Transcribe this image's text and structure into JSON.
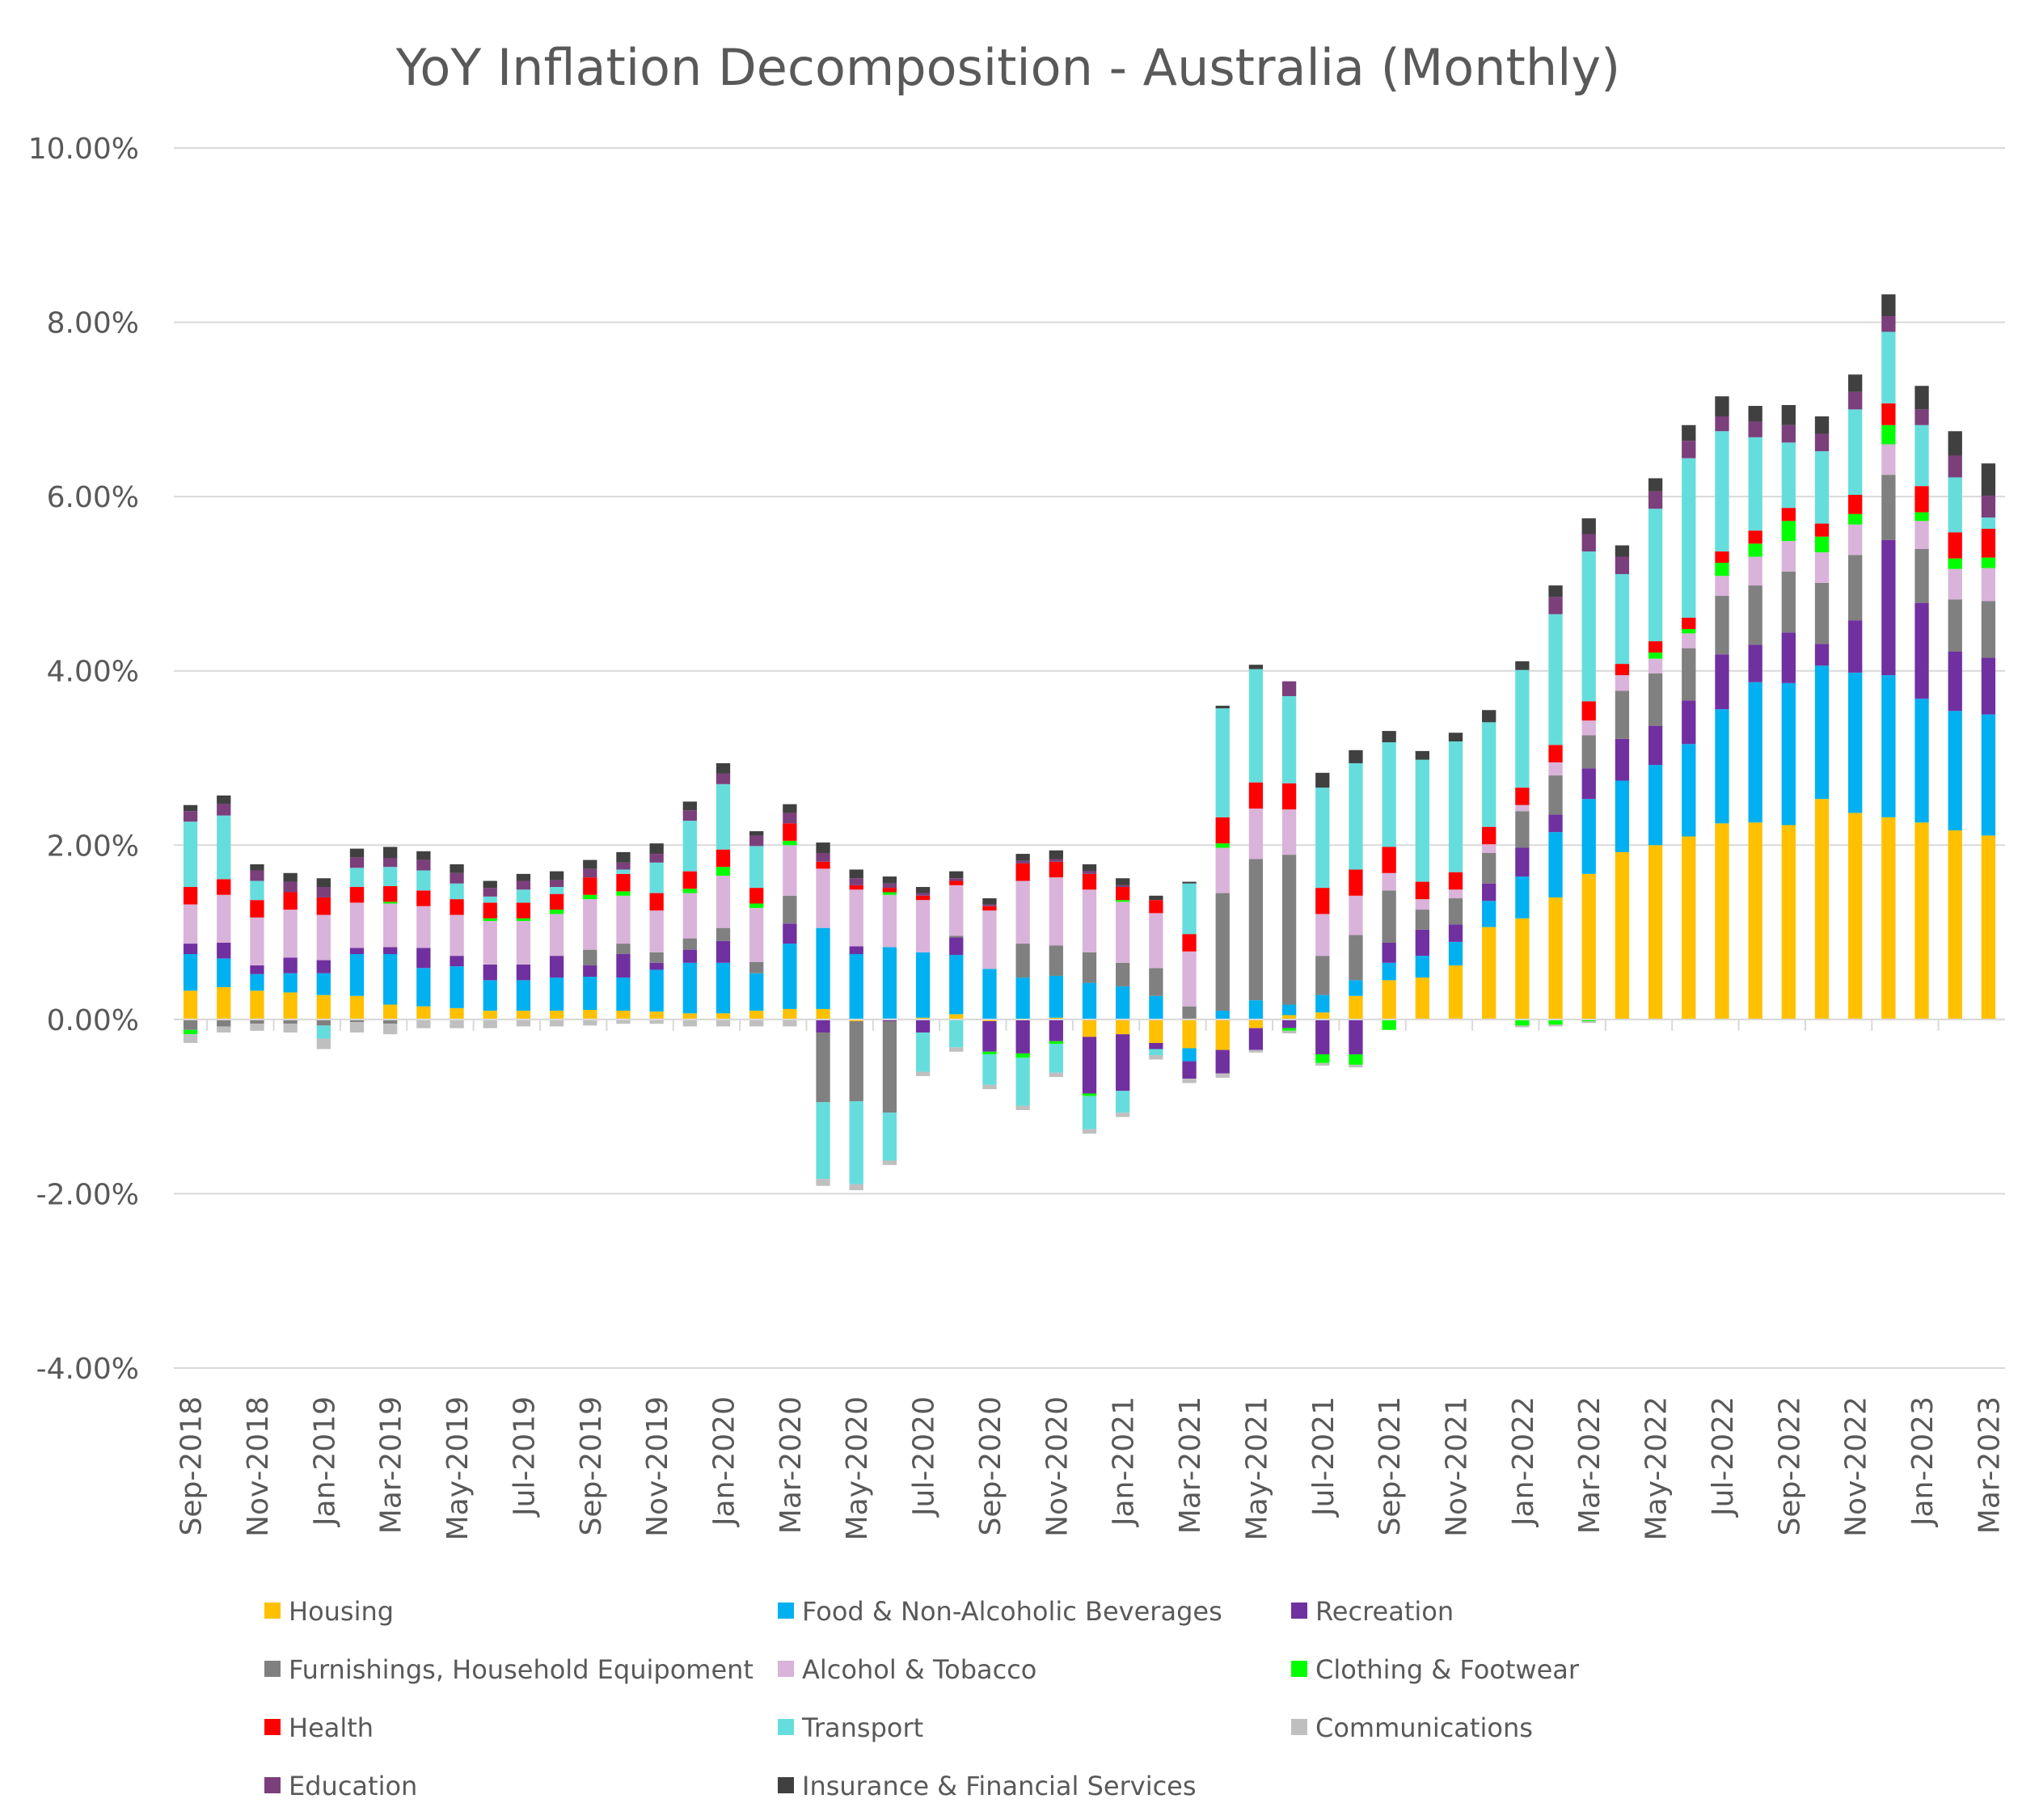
{
  "chart_data": {
    "type": "bar",
    "stacked": true,
    "title": "YoY Inflation Decomposition - Australia (Monthly)",
    "xlabel": "",
    "ylabel": "",
    "ylim": [
      -4,
      10
    ],
    "y_ticks": [
      -4,
      -2,
      0,
      2,
      4,
      6,
      8,
      10
    ],
    "y_tick_labels": [
      "-4.00%",
      "-2.00%",
      "0.00%",
      "2.00%",
      "4.00%",
      "6.00%",
      "8.00%",
      "10.00%"
    ],
    "grid": true,
    "legend_position": "bottom",
    "categories": [
      "Sep-2018",
      "Oct-2018",
      "Nov-2018",
      "Dec-2018",
      "Jan-2019",
      "Feb-2019",
      "Mar-2019",
      "Apr-2019",
      "May-2019",
      "Jun-2019",
      "Jul-2019",
      "Aug-2019",
      "Sep-2019",
      "Oct-2019",
      "Nov-2019",
      "Dec-2019",
      "Jan-2020",
      "Feb-2020",
      "Mar-2020",
      "Apr-2020",
      "May-2020",
      "Jun-2020",
      "Jul-2020",
      "Aug-2020",
      "Sep-2020",
      "Oct-2020",
      "Nov-2020",
      "Dec-2020",
      "Jan-2021",
      "Feb-2021",
      "Mar-2021",
      "Apr-2021",
      "May-2021",
      "Jun-2021",
      "Jul-2021",
      "Aug-2021",
      "Sep-2021",
      "Oct-2021",
      "Nov-2021",
      "Dec-2021",
      "Jan-2022",
      "Feb-2022",
      "Mar-2022",
      "Apr-2022",
      "May-2022",
      "Jun-2022",
      "Jul-2022",
      "Aug-2022",
      "Sep-2022",
      "Oct-2022",
      "Nov-2022",
      "Dec-2022",
      "Jan-2023",
      "Feb-2023",
      "Mar-2023"
    ],
    "x_tick_labels": [
      "Sep-2018",
      "",
      "Nov-2018",
      "",
      "Jan-2019",
      "",
      "Mar-2019",
      "",
      "May-2019",
      "",
      "Jul-2019",
      "",
      "Sep-2019",
      "",
      "Nov-2019",
      "",
      "Jan-2020",
      "",
      "Mar-2020",
      "",
      "May-2020",
      "",
      "Jul-2020",
      "",
      "Sep-2020",
      "",
      "Nov-2020",
      "",
      "Jan-2021",
      "",
      "Mar-2021",
      "",
      "May-2021",
      "",
      "Jul-2021",
      "",
      "Sep-2021",
      "",
      "Nov-2021",
      "",
      "Jan-2022",
      "",
      "Mar-2022",
      "",
      "May-2022",
      "",
      "Jul-2022",
      "",
      "Sep-2022",
      "",
      "Nov-2022",
      "",
      "Jan-2023",
      "",
      "Mar-2023"
    ],
    "series": [
      {
        "name": "Housing",
        "color": "#FFC000",
        "values": [
          0.33,
          0.37,
          0.33,
          0.31,
          0.28,
          0.27,
          0.17,
          0.15,
          0.13,
          0.1,
          0.1,
          0.1,
          0.11,
          0.1,
          0.09,
          0.07,
          0.07,
          0.1,
          0.12,
          0.12,
          -0.02,
          0.01,
          0.02,
          0.06,
          -0.02,
          -0.01,
          0.02,
          -0.2,
          -0.17,
          -0.27,
          -0.33,
          -0.35,
          -0.1,
          0.05,
          0.08,
          0.27,
          0.45,
          0.48,
          0.62,
          1.06,
          1.16,
          1.4,
          1.67,
          1.92,
          2.0,
          2.1,
          2.25,
          2.26,
          2.23,
          2.53,
          2.37,
          2.32,
          2.26,
          2.17,
          2.11
        ]
      },
      {
        "name": "Food & Non-Alcoholic Beverages",
        "color": "#00B0F0",
        "values": [
          0.42,
          0.33,
          0.19,
          0.22,
          0.25,
          0.48,
          0.58,
          0.44,
          0.48,
          0.35,
          0.35,
          0.38,
          0.38,
          0.38,
          0.48,
          0.58,
          0.58,
          0.43,
          0.75,
          0.93,
          0.75,
          0.82,
          0.75,
          0.68,
          0.58,
          0.48,
          0.48,
          0.42,
          0.38,
          0.27,
          -0.15,
          0.1,
          0.22,
          0.12,
          0.2,
          0.18,
          0.2,
          0.25,
          0.27,
          0.3,
          0.48,
          0.75,
          0.86,
          0.82,
          0.92,
          1.06,
          1.31,
          1.61,
          1.63,
          1.53,
          1.61,
          1.63,
          1.42,
          1.37,
          1.39
        ]
      },
      {
        "name": "Recreation",
        "color": "#7030A0",
        "values": [
          0.12,
          0.18,
          0.1,
          0.18,
          0.15,
          0.07,
          0.08,
          0.23,
          0.12,
          0.18,
          0.18,
          0.25,
          0.13,
          0.27,
          0.08,
          0.15,
          0.25,
          0.0,
          0.23,
          -0.15,
          0.09,
          -0.02,
          -0.15,
          0.2,
          -0.35,
          -0.38,
          -0.25,
          -0.65,
          -0.65,
          -0.07,
          -0.2,
          -0.27,
          -0.25,
          -0.1,
          -0.4,
          -0.4,
          0.23,
          0.3,
          0.2,
          0.2,
          0.33,
          0.2,
          0.35,
          0.48,
          0.45,
          0.5,
          0.63,
          0.43,
          0.58,
          0.25,
          0.6,
          1.55,
          1.1,
          0.68,
          0.65
        ]
      },
      {
        "name": "Furnishings, Household Equipoment",
        "color": "#808080",
        "values": [
          -0.12,
          -0.08,
          -0.05,
          -0.05,
          -0.07,
          -0.03,
          -0.05,
          0.0,
          0.0,
          0.0,
          0.0,
          0.0,
          0.18,
          0.12,
          0.12,
          0.13,
          0.15,
          0.13,
          0.32,
          -0.8,
          -0.92,
          -1.05,
          0.0,
          0.02,
          0.0,
          0.39,
          0.35,
          0.35,
          0.27,
          0.32,
          0.15,
          1.35,
          1.62,
          1.72,
          0.45,
          0.52,
          0.6,
          0.23,
          0.3,
          0.35,
          0.42,
          0.45,
          0.38,
          0.55,
          0.6,
          0.6,
          0.67,
          0.68,
          0.7,
          0.7,
          0.75,
          0.75,
          0.62,
          0.6,
          0.65
        ]
      },
      {
        "name": "Alcohol & Tobacco",
        "color": "#D9B3D9",
        "values": [
          0.45,
          0.55,
          0.55,
          0.55,
          0.52,
          0.52,
          0.5,
          0.48,
          0.47,
          0.5,
          0.5,
          0.48,
          0.58,
          0.55,
          0.48,
          0.52,
          0.6,
          0.62,
          0.58,
          0.68,
          0.65,
          0.6,
          0.6,
          0.58,
          0.67,
          0.72,
          0.78,
          0.72,
          0.7,
          0.63,
          0.63,
          0.52,
          0.58,
          0.52,
          0.48,
          0.45,
          0.2,
          0.12,
          0.1,
          0.1,
          0.07,
          0.15,
          0.17,
          0.18,
          0.17,
          0.17,
          0.23,
          0.33,
          0.35,
          0.35,
          0.35,
          0.35,
          0.32,
          0.35,
          0.38
        ]
      },
      {
        "name": "Clothing & Footwear",
        "color": "#00FF00",
        "values": [
          -0.05,
          0.0,
          0.0,
          0.0,
          0.0,
          0.0,
          0.02,
          0.0,
          0.0,
          0.03,
          0.03,
          0.05,
          0.05,
          0.05,
          0.0,
          0.05,
          0.1,
          0.05,
          0.05,
          0.0,
          0.0,
          0.03,
          0.0,
          0.0,
          -0.03,
          -0.05,
          -0.03,
          -0.03,
          0.02,
          0.0,
          0.0,
          0.05,
          0.0,
          -0.03,
          -0.1,
          -0.12,
          -0.12,
          0.0,
          0.0,
          0.0,
          -0.07,
          -0.06,
          -0.02,
          0.0,
          0.07,
          0.05,
          0.15,
          0.15,
          0.23,
          0.18,
          0.12,
          0.22,
          0.1,
          0.12,
          0.12
        ]
      },
      {
        "name": "Health",
        "color": "#FF0000",
        "values": [
          0.2,
          0.18,
          0.2,
          0.2,
          0.2,
          0.18,
          0.18,
          0.18,
          0.18,
          0.18,
          0.18,
          0.18,
          0.2,
          0.2,
          0.2,
          0.2,
          0.2,
          0.18,
          0.2,
          0.08,
          0.05,
          0.05,
          0.05,
          0.05,
          0.05,
          0.2,
          0.18,
          0.18,
          0.15,
          0.15,
          0.2,
          0.3,
          0.3,
          0.3,
          0.3,
          0.3,
          0.3,
          0.2,
          0.2,
          0.2,
          0.2,
          0.2,
          0.22,
          0.13,
          0.13,
          0.13,
          0.13,
          0.15,
          0.15,
          0.15,
          0.22,
          0.25,
          0.3,
          0.3,
          0.33
        ]
      },
      {
        "name": "Transport",
        "color": "#66DDDD",
        "values": [
          0.75,
          0.73,
          0.22,
          0.0,
          -0.15,
          0.22,
          0.22,
          0.23,
          0.18,
          0.07,
          0.15,
          0.08,
          0.0,
          0.05,
          0.35,
          0.58,
          0.75,
          0.48,
          0.0,
          -0.88,
          -0.95,
          -0.55,
          -0.45,
          -0.32,
          -0.35,
          -0.55,
          -0.33,
          -0.38,
          -0.25,
          -0.07,
          0.58,
          1.25,
          1.3,
          1.0,
          1.15,
          1.22,
          1.2,
          1.4,
          1.5,
          1.2,
          1.35,
          1.5,
          1.72,
          1.03,
          1.52,
          1.83,
          1.38,
          1.07,
          0.75,
          0.83,
          0.98,
          0.82,
          0.7,
          0.63,
          0.13
        ]
      },
      {
        "name": "Communications",
        "color": "#BFBFBF",
        "values": [
          -0.1,
          -0.07,
          -0.08,
          -0.1,
          -0.12,
          -0.12,
          -0.12,
          -0.1,
          -0.1,
          -0.1,
          -0.08,
          -0.08,
          -0.07,
          -0.05,
          -0.05,
          -0.08,
          -0.08,
          -0.08,
          -0.08,
          -0.08,
          -0.07,
          -0.05,
          -0.05,
          -0.05,
          -0.05,
          -0.05,
          -0.05,
          -0.05,
          -0.05,
          -0.05,
          -0.05,
          -0.05,
          -0.03,
          -0.03,
          -0.03,
          -0.03,
          0.0,
          0.0,
          0.0,
          0.0,
          -0.02,
          -0.02,
          -0.02,
          0.0,
          0.0,
          0.0,
          0.0,
          0.0,
          0.0,
          0.0,
          0.0,
          0.0,
          0.0,
          0.0,
          0.0
        ]
      },
      {
        "name": "Education",
        "color": "#7B3F7B",
        "values": [
          0.12,
          0.13,
          0.12,
          0.12,
          0.12,
          0.12,
          0.1,
          0.12,
          0.12,
          0.1,
          0.1,
          0.08,
          0.1,
          0.08,
          0.1,
          0.12,
          0.12,
          0.12,
          0.12,
          0.1,
          0.08,
          0.05,
          0.03,
          0.03,
          0.02,
          0.03,
          0.03,
          0.03,
          0.02,
          0.0,
          0.0,
          0.0,
          0.0,
          0.17,
          0.0,
          0.0,
          0.0,
          0.0,
          0.0,
          0.0,
          0.0,
          0.2,
          0.2,
          0.2,
          0.2,
          0.2,
          0.17,
          0.18,
          0.2,
          0.2,
          0.2,
          0.18,
          0.18,
          0.25,
          0.25
        ]
      },
      {
        "name": "Insurance & Financial Services",
        "color": "#404040",
        "values": [
          0.07,
          0.1,
          0.07,
          0.1,
          0.1,
          0.1,
          0.13,
          0.1,
          0.1,
          0.08,
          0.08,
          0.1,
          0.1,
          0.12,
          0.12,
          0.1,
          0.12,
          0.05,
          0.1,
          0.12,
          0.1,
          0.08,
          0.07,
          0.08,
          0.07,
          0.08,
          0.1,
          0.08,
          0.08,
          0.05,
          0.02,
          0.03,
          0.05,
          0.0,
          0.17,
          0.15,
          0.13,
          0.1,
          0.1,
          0.14,
          0.1,
          0.13,
          0.18,
          0.13,
          0.15,
          0.18,
          0.23,
          0.18,
          0.23,
          0.2,
          0.2,
          0.25,
          0.27,
          0.28,
          0.37
        ]
      }
    ]
  }
}
